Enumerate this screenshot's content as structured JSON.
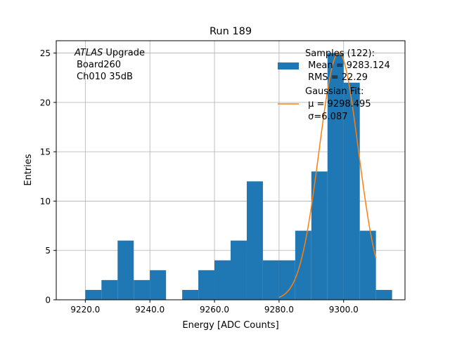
{
  "chart_data": {
    "type": "bar",
    "title": "Run 189",
    "xlabel": "Energy [ADC Counts]",
    "ylabel": "Entries",
    "xlim": [
      9211,
      9319
    ],
    "ylim": [
      0,
      26.25
    ],
    "grid": true,
    "x_ticks": [
      9220,
      9240,
      9260,
      9280,
      9300
    ],
    "x_tick_labels": [
      "9220.0",
      "9240.0",
      "9260.0",
      "9280.0",
      "9300.0"
    ],
    "y_ticks": [
      0,
      5,
      10,
      15,
      20,
      25
    ],
    "y_tick_labels": [
      "0",
      "5",
      "10",
      "15",
      "20",
      "25"
    ],
    "bin_width": 5,
    "bin_edges": [
      9220,
      9225,
      9230,
      9235,
      9240,
      9245,
      9250,
      9255,
      9260,
      9265,
      9270,
      9275,
      9280,
      9285,
      9290,
      9295,
      9300,
      9305,
      9310,
      9315
    ],
    "values": [
      1,
      2,
      6,
      2,
      3,
      0,
      1,
      3,
      4,
      6,
      12,
      4,
      4,
      7,
      13,
      25,
      22,
      7,
      1
    ],
    "annotation": {
      "lines": [
        "ATLAS Upgrade",
        "Board260",
        "Ch010 35dB"
      ]
    },
    "legend": {
      "placement": "top-right",
      "entries": [
        {
          "kind": "patch",
          "lines": [
            "Samples (122):",
            " Mean = 9283.124",
            " RMS = 22.29"
          ]
        },
        {
          "kind": "line",
          "lines": [
            "Gaussian Fit:",
            " μ = 9298.495",
            " σ=6.087"
          ]
        }
      ]
    },
    "fit": {
      "type": "gaussian",
      "amplitude": 25,
      "mu": 9298.495,
      "sigma": 6.087,
      "x_range": [
        9280,
        9310
      ]
    },
    "colors": {
      "bars": "#1f77b4",
      "fit": "#ff7f0e",
      "grid": "#b0b0b0",
      "axes": "#000000"
    }
  }
}
